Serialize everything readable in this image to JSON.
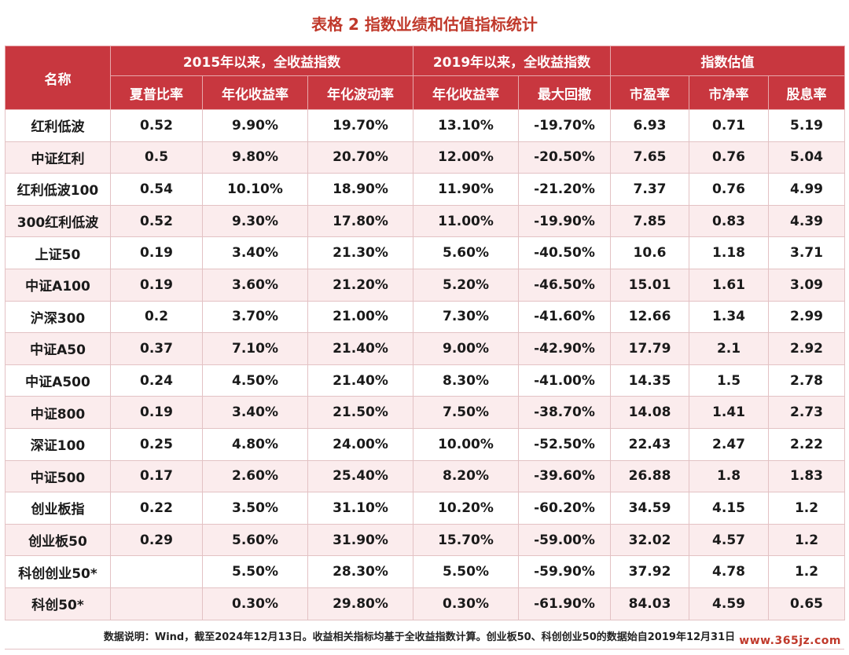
{
  "title": "表格 2 指数业绩和估值指标统计",
  "header": {
    "name": "名称",
    "group_2015": "2015年以来，全收益指数",
    "group_2019": "2019年以来，全收益指数",
    "group_valuation": "指数估值",
    "columns": [
      "夏普比率",
      "年化收益率",
      "年化波动率",
      "年化收益率",
      "最大回撤",
      "市盈率",
      "市净率",
      "股息率"
    ]
  },
  "rows": [
    [
      "红利低波",
      "0.52",
      "9.90%",
      "19.70%",
      "13.10%",
      "-19.70%",
      "6.93",
      "0.71",
      "5.19"
    ],
    [
      "中证红利",
      "0.5",
      "9.80%",
      "20.70%",
      "12.00%",
      "-20.50%",
      "7.65",
      "0.76",
      "5.04"
    ],
    [
      "红利低波100",
      "0.54",
      "10.10%",
      "18.90%",
      "11.90%",
      "-21.20%",
      "7.37",
      "0.76",
      "4.99"
    ],
    [
      "300红利低波",
      "0.52",
      "9.30%",
      "17.80%",
      "11.00%",
      "-19.90%",
      "7.85",
      "0.83",
      "4.39"
    ],
    [
      "上证50",
      "0.19",
      "3.40%",
      "21.30%",
      "5.60%",
      "-40.50%",
      "10.6",
      "1.18",
      "3.71"
    ],
    [
      "中证A100",
      "0.19",
      "3.60%",
      "21.20%",
      "5.20%",
      "-46.50%",
      "15.01",
      "1.61",
      "3.09"
    ],
    [
      "沪深300",
      "0.2",
      "3.70%",
      "21.00%",
      "7.30%",
      "-41.60%",
      "12.66",
      "1.34",
      "2.99"
    ],
    [
      "中证A50",
      "0.37",
      "7.10%",
      "21.40%",
      "9.00%",
      "-42.90%",
      "17.79",
      "2.1",
      "2.92"
    ],
    [
      "中证A500",
      "0.24",
      "4.50%",
      "21.40%",
      "8.30%",
      "-41.00%",
      "14.35",
      "1.5",
      "2.78"
    ],
    [
      "中证800",
      "0.19",
      "3.40%",
      "21.50%",
      "7.50%",
      "-38.70%",
      "14.08",
      "1.41",
      "2.73"
    ],
    [
      "深证100",
      "0.25",
      "4.80%",
      "24.00%",
      "10.00%",
      "-52.50%",
      "22.43",
      "2.47",
      "2.22"
    ],
    [
      "中证500",
      "0.17",
      "2.60%",
      "25.40%",
      "8.20%",
      "-39.60%",
      "26.88",
      "1.8",
      "1.83"
    ],
    [
      "创业板指",
      "0.22",
      "3.50%",
      "31.10%",
      "10.20%",
      "-60.20%",
      "34.59",
      "4.15",
      "1.2"
    ],
    [
      "创业板50",
      "0.29",
      "5.60%",
      "31.90%",
      "15.70%",
      "-59.00%",
      "32.02",
      "4.57",
      "1.2"
    ],
    [
      "科创创业50*",
      "",
      "5.50%",
      "28.30%",
      "5.50%",
      "-59.90%",
      "37.92",
      "4.78",
      "1.2"
    ],
    [
      "科创50*",
      "",
      "0.30%",
      "29.80%",
      "0.30%",
      "-61.90%",
      "84.03",
      "4.59",
      "0.65"
    ]
  ],
  "note": "数据说明：Wind，截至2024年12月13日。收益相关指标均基于全收益指数计算。创业板50、科创创业50的数据始自2019年12月31日。",
  "watermark": "www.365jz.com"
}
